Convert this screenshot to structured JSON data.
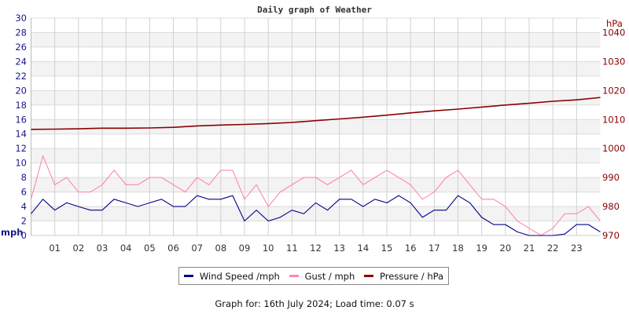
{
  "chart_data": {
    "type": "line",
    "title": "Daily graph of Weather",
    "y_left": {
      "label": "mph",
      "range": [
        0,
        30
      ],
      "ticks": [
        "0",
        "2",
        "4",
        "6",
        "8",
        "10",
        "12",
        "14",
        "16",
        "18",
        "20",
        "22",
        "24",
        "26",
        "28",
        "30"
      ]
    },
    "y_right": {
      "label": "hPa",
      "range": [
        970,
        1045
      ],
      "ticks": [
        "970",
        "980",
        "990",
        "1000",
        "1010",
        "1020",
        "1030",
        "1040"
      ]
    },
    "x": {
      "range_hours": [
        0,
        24
      ],
      "ticks": [
        "01",
        "02",
        "03",
        "04",
        "05",
        "06",
        "07",
        "08",
        "09",
        "10",
        "11",
        "12",
        "13",
        "14",
        "15",
        "16",
        "17",
        "18",
        "19",
        "20",
        "21",
        "22",
        "23"
      ]
    },
    "grid": true,
    "legend_placement": "bottom",
    "series": [
      {
        "name": "Wind Speed /mph",
        "color": "#00008b",
        "axis": "left",
        "interval_hours": 0.5,
        "values": [
          3,
          5,
          3.5,
          4.5,
          4,
          3.5,
          3.5,
          5,
          4.5,
          4,
          4.5,
          5,
          4,
          4,
          5.5,
          5,
          5,
          5.5,
          2,
          3.5,
          2,
          2.5,
          3.5,
          3,
          4.5,
          3.5,
          5,
          5,
          4,
          5,
          4.5,
          5.5,
          4.5,
          2.5,
          3.5,
          3.5,
          5.5,
          4.5,
          2.5,
          1.5,
          1.5,
          0.5,
          0,
          0,
          0,
          0.2,
          1.5,
          1.5,
          0.5
        ]
      },
      {
        "name": "Gust / mph",
        "color": "#ff88aa",
        "axis": "left",
        "interval_hours": 0.5,
        "values": [
          5,
          11,
          7,
          8,
          6,
          6,
          7,
          9,
          7,
          7,
          8,
          8,
          7,
          6,
          8,
          7,
          9,
          9,
          5,
          7,
          4,
          6,
          7,
          8,
          8,
          7,
          8,
          9,
          7,
          8,
          9,
          8,
          7,
          5,
          6,
          8,
          9,
          7,
          5,
          5,
          4,
          2,
          1,
          0,
          1,
          3,
          3,
          4,
          2
        ]
      },
      {
        "name": "Pressure / hPa",
        "color": "#8b0000",
        "axis": "right",
        "interval_hours": 1,
        "values": [
          1006.6,
          1006.7,
          1006.8,
          1007.0,
          1007.0,
          1007.1,
          1007.3,
          1007.8,
          1008.1,
          1008.3,
          1008.6,
          1009.0,
          1009.6,
          1010.2,
          1010.8,
          1011.5,
          1012.3,
          1013.0,
          1013.6,
          1014.3,
          1015.0,
          1015.6,
          1016.3,
          1016.8,
          1017.6
        ]
      }
    ]
  },
  "footer": "Graph for: 16th July 2024; Load time: 0.07 s"
}
